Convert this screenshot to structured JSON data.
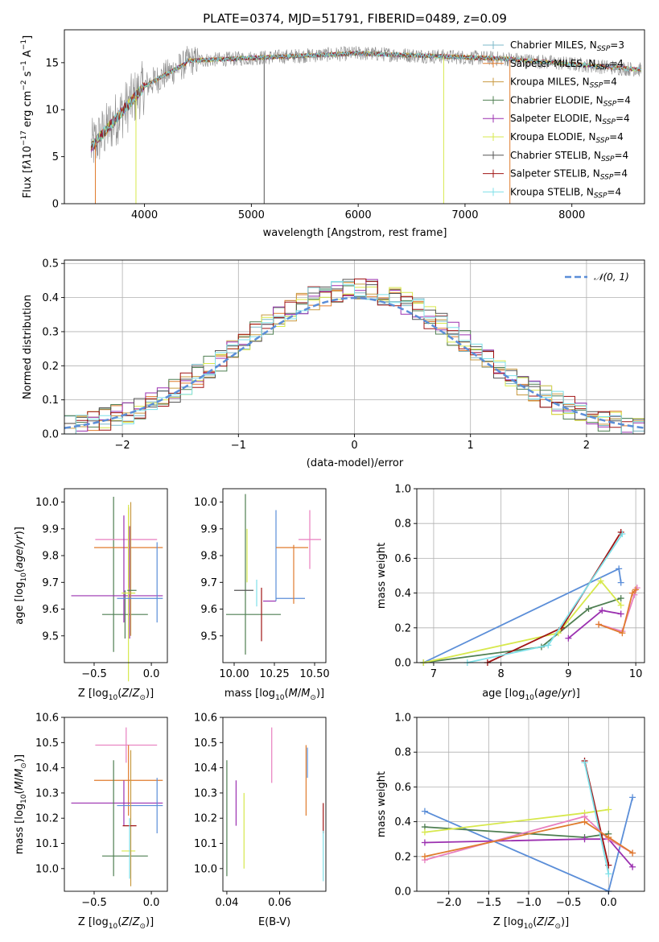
{
  "chart_data": [
    {
      "id": "spectrum",
      "type": "line",
      "title": "PLATE=0374, MJD=51791, FIBERID=0489, z=0.09",
      "xlabel": "wavelength [Angstrom, rest frame]",
      "ylabel": "Flux [f_λ 10^-17 erg cm^-2 s^-1 A^-1]",
      "xlim": [
        3250,
        8680
      ],
      "ylim": [
        0,
        18.5
      ],
      "xticks": [
        4000,
        5000,
        6000,
        7000,
        8000
      ],
      "yticks": [
        0,
        5,
        10,
        15
      ],
      "grid": false,
      "legend_position": "right",
      "series": [
        {
          "name": "Chabrier MILES, N_SSP=3",
          "color": "#7cb8c8",
          "style": "plus"
        },
        {
          "name": "Salpeter MILES, N_SSP=4",
          "color": "#e07c2e"
        },
        {
          "name": "Kroupa MILES, N_SSP=4",
          "color": "#c89a40"
        },
        {
          "name": "Chabrier ELODIE, N_SSP=4",
          "color": "#4f7f52"
        },
        {
          "name": "Salpeter ELODIE, N_SSP=4",
          "color": "#9b30b0"
        },
        {
          "name": "Kroupa ELODIE, N_SSP=4",
          "color": "#d7e84c"
        },
        {
          "name": "Chabrier STELIB, N_SSP=4",
          "color": "#555555"
        },
        {
          "name": "Salpeter STELIB, N_SSP=4",
          "color": "#a01414"
        },
        {
          "name": "Kroupa STELIB, N_SSP=4",
          "color": "#7fe0e8"
        }
      ]
    },
    {
      "id": "residuals",
      "type": "line",
      "xlabel": "(data-model)/error",
      "ylabel": "Normed distribution",
      "xlim": [
        -2.5,
        2.5
      ],
      "ylim": [
        0,
        0.51
      ],
      "xticks": [
        -2,
        -1,
        0,
        1,
        2
      ],
      "yticks": [
        0.0,
        0.1,
        0.2,
        0.3,
        0.4,
        0.5
      ],
      "grid": true,
      "legend": "𝒩(0, 1)",
      "legend_position": "top-right",
      "curve": {
        "name": "N(0,1)",
        "mean": 0,
        "sigma": 1,
        "color": "#5b8ed8",
        "style": "dashed"
      }
    },
    {
      "id": "age_vs_Z",
      "type": "scatter",
      "xlabel": "Z [log10(Z/Z☉)]",
      "ylabel": "age  [log10(age/yr)]",
      "xlim": [
        -0.76,
        0.14
      ],
      "ylim": [
        9.4,
        10.05
      ],
      "xticks": [
        -0.5,
        0.0
      ],
      "yticks": [
        9.5,
        9.6,
        9.7,
        9.8,
        9.9,
        10.0
      ],
      "points": [
        {
          "x": -0.23,
          "y": 9.58,
          "xerr": 0.2,
          "yerr": 0.09,
          "color": "#4f7f52"
        },
        {
          "x": -0.33,
          "y": 9.73,
          "xerr": 0.0,
          "yerr": 0.29,
          "color": "#4f7f52"
        },
        {
          "x": -0.22,
          "y": 9.86,
          "xerr": 0.27,
          "yerr": 0.0,
          "color": "#e87fbf"
        },
        {
          "x": -0.2,
          "y": 9.83,
          "xerr": 0.3,
          "yerr": 0.15,
          "color": "#e07c2e"
        },
        {
          "x": -0.3,
          "y": 9.65,
          "xerr": 0.4,
          "yerr": 0.0,
          "color": "#9b30b0"
        },
        {
          "x": -0.24,
          "y": 9.75,
          "xerr": 0.0,
          "yerr": 0.2,
          "color": "#9b30b0"
        },
        {
          "x": -0.19,
          "y": 9.7,
          "xerr": 0.0,
          "yerr": 0.21,
          "color": "#9b30b0"
        },
        {
          "x": -0.2,
          "y": 9.66,
          "xerr": 0.06,
          "yerr": 0.33,
          "color": "#d7e84c"
        },
        {
          "x": -0.18,
          "y": 9.75,
          "xerr": 0.0,
          "yerr": 0.25,
          "color": "#c89a40"
        },
        {
          "x": -0.1,
          "y": 9.64,
          "xerr": 0.2,
          "yerr": 0.0,
          "color": "#5b8ed8"
        },
        {
          "x": 0.05,
          "y": 9.7,
          "xerr": 0.0,
          "yerr": 0.15,
          "color": "#5b8ed8"
        },
        {
          "x": -0.17,
          "y": 9.67,
          "xerr": 0.04,
          "yerr": 0.0,
          "color": "#4f7f52"
        }
      ]
    },
    {
      "id": "age_vs_mass",
      "type": "scatter",
      "xlabel": "mass [log10(M/M☉)]",
      "ylabel": "",
      "xlim": [
        9.93,
        10.57
      ],
      "ylim": [
        9.4,
        10.05
      ],
      "xticks": [
        10.0,
        10.25,
        10.5
      ],
      "yticks": [
        9.5,
        9.6,
        9.7,
        9.8,
        9.9,
        10.0
      ],
      "points": [
        {
          "x": 10.07,
          "y": 9.73,
          "xerr": 0.0,
          "yerr": 0.3,
          "color": "#4f7f52"
        },
        {
          "x": 10.12,
          "y": 9.58,
          "xerr": 0.17,
          "yerr": 0.0,
          "color": "#4f7f52"
        },
        {
          "x": 10.06,
          "y": 9.67,
          "xerr": 0.06,
          "yerr": 0.0,
          "color": "#555555"
        },
        {
          "x": 10.08,
          "y": 9.8,
          "xerr": 0.0,
          "yerr": 0.1,
          "color": "#d7e84c"
        },
        {
          "x": 10.22,
          "y": 9.63,
          "xerr": 0.04,
          "yerr": 0.0,
          "color": "#9b30b0"
        },
        {
          "x": 10.17,
          "y": 9.58,
          "xerr": 0.0,
          "yerr": 0.1,
          "color": "#a01414"
        },
        {
          "x": 10.26,
          "y": 9.8,
          "xerr": 0.0,
          "yerr": 0.17,
          "color": "#5b8ed8"
        },
        {
          "x": 10.35,
          "y": 9.64,
          "xerr": 0.09,
          "yerr": 0.0,
          "color": "#5b8ed8"
        },
        {
          "x": 10.36,
          "y": 9.83,
          "xerr": 0.1,
          "yerr": 0.0,
          "color": "#e07c2e"
        },
        {
          "x": 10.37,
          "y": 9.73,
          "xerr": 0.0,
          "yerr": 0.11,
          "color": "#e07c2e"
        },
        {
          "x": 10.47,
          "y": 9.86,
          "xerr": 0.07,
          "yerr": 0.11,
          "color": "#e87fbf"
        },
        {
          "x": 10.14,
          "y": 9.66,
          "xerr": 0.0,
          "yerr": 0.05,
          "color": "#7fe0e8"
        }
      ]
    },
    {
      "id": "weight_vs_age",
      "type": "line",
      "xlabel": "age  [log10(age/yr)]",
      "ylabel": "mass weight",
      "xlim": [
        6.75,
        10.13
      ],
      "ylim": [
        0,
        1.0
      ],
      "xticks": [
        7,
        8,
        9,
        10
      ],
      "yticks": [
        0.0,
        0.2,
        0.4,
        0.6,
        0.8,
        1.0
      ],
      "grid": true,
      "series": [
        {
          "color": "#5b8ed8",
          "x": [
            6.85,
            9.75,
            9.78
          ],
          "y": [
            0.0,
            0.54,
            0.46
          ]
        },
        {
          "color": "#4f7f52",
          "x": [
            6.85,
            8.6,
            9.3,
            9.78
          ],
          "y": [
            0.0,
            0.09,
            0.31,
            0.37
          ]
        },
        {
          "color": "#d7e84c",
          "x": [
            6.85,
            8.85,
            9.48,
            9.78
          ],
          "y": [
            0.0,
            0.17,
            0.47,
            0.33
          ]
        },
        {
          "color": "#9b30b0",
          "x": [
            9.0,
            9.5,
            9.78
          ],
          "y": [
            0.14,
            0.3,
            0.28
          ]
        },
        {
          "color": "#a01414",
          "x": [
            7.8,
            8.9,
            9.78
          ],
          "y": [
            0.0,
            0.2,
            0.75
          ]
        },
        {
          "color": "#7fe0e8",
          "x": [
            7.5,
            8.7,
            9.8
          ],
          "y": [
            0.0,
            0.1,
            0.74
          ]
        },
        {
          "color": "#e87fbf",
          "x": [
            9.45,
            9.8,
            9.98,
            10.02
          ],
          "y": [
            0.22,
            0.18,
            0.39,
            0.43
          ]
        },
        {
          "color": "#e07c2e",
          "x": [
            9.45,
            9.8,
            9.95,
            10.0
          ],
          "y": [
            0.22,
            0.17,
            0.4,
            0.42
          ]
        }
      ]
    },
    {
      "id": "mass_vs_Z",
      "type": "scatter",
      "xlabel": "Z [log10(Z/Z☉)]",
      "ylabel": "mass [log10(M/M☉)]",
      "xlim": [
        -0.76,
        0.14
      ],
      "ylim": [
        9.91,
        10.6
      ],
      "xticks": [
        -0.5,
        0.0
      ],
      "yticks": [
        10.0,
        10.1,
        10.2,
        10.3,
        10.4,
        10.5,
        10.6
      ],
      "points": [
        {
          "x": -0.22,
          "y": 10.49,
          "xerr": 0.27,
          "yerr": 0.07,
          "color": "#e87fbf"
        },
        {
          "x": -0.2,
          "y": 10.35,
          "xerr": 0.3,
          "yerr": 0.14,
          "color": "#e07c2e"
        },
        {
          "x": -0.3,
          "y": 10.26,
          "xerr": 0.4,
          "yerr": 0.0,
          "color": "#9b30b0"
        },
        {
          "x": -0.24,
          "y": 10.26,
          "xerr": 0.0,
          "yerr": 0.09,
          "color": "#9b30b0"
        },
        {
          "x": -0.1,
          "y": 10.25,
          "xerr": 0.2,
          "yerr": 0.0,
          "color": "#5b8ed8"
        },
        {
          "x": 0.05,
          "y": 10.25,
          "xerr": 0.0,
          "yerr": 0.11,
          "color": "#5b8ed8"
        },
        {
          "x": -0.33,
          "y": 10.2,
          "xerr": 0.0,
          "yerr": 0.23,
          "color": "#4f7f52"
        },
        {
          "x": -0.23,
          "y": 10.05,
          "xerr": 0.2,
          "yerr": 0.0,
          "color": "#4f7f52"
        },
        {
          "x": -0.2,
          "y": 10.07,
          "xerr": 0.06,
          "yerr": 0.0,
          "color": "#d7e84c"
        },
        {
          "x": -0.18,
          "y": 10.2,
          "xerr": 0.0,
          "yerr": 0.27,
          "color": "#c89a40"
        },
        {
          "x": -0.19,
          "y": 10.17,
          "xerr": 0.06,
          "yerr": 0.0,
          "color": "#a01414"
        },
        {
          "x": -0.19,
          "y": 10.08,
          "xerr": 0.0,
          "yerr": 0.12,
          "color": "#7fe0e8"
        }
      ]
    },
    {
      "id": "mass_vs_EBV",
      "type": "scatter",
      "xlabel": "E(B-V)",
      "ylabel": "",
      "xlim": [
        0.0385,
        0.0775
      ],
      "ylim": [
        9.91,
        10.6
      ],
      "xticks": [
        0.04,
        0.06
      ],
      "yticks": [
        10.0,
        10.1,
        10.2,
        10.3,
        10.4,
        10.5,
        10.6
      ],
      "points": [
        {
          "x": 0.04,
          "y": 10.2,
          "xerr": 0.0,
          "yerr": 0.23,
          "color": "#4f7f52"
        },
        {
          "x": 0.0435,
          "y": 10.26,
          "xerr": 0.0,
          "yerr": 0.09,
          "color": "#9b30b0"
        },
        {
          "x": 0.0465,
          "y": 10.15,
          "xerr": 0.0,
          "yerr": 0.15,
          "color": "#d7e84c"
        },
        {
          "x": 0.057,
          "y": 10.45,
          "xerr": 0.0,
          "yerr": 0.11,
          "color": "#e87fbf"
        },
        {
          "x": 0.07,
          "y": 10.35,
          "xerr": 0.0,
          "yerr": 0.14,
          "color": "#e07c2e"
        },
        {
          "x": 0.0705,
          "y": 10.42,
          "xerr": 0.0,
          "yerr": 0.06,
          "color": "#5b8ed8"
        },
        {
          "x": 0.0765,
          "y": 10.2,
          "xerr": 0.0,
          "yerr": 0.06,
          "color": "#a01414"
        },
        {
          "x": 0.0765,
          "y": 10.05,
          "xerr": 0.0,
          "yerr": 0.1,
          "color": "#7fe0e8"
        }
      ]
    },
    {
      "id": "weight_vs_Z",
      "type": "line",
      "xlabel": "Z [log10(Z/Z☉)]",
      "ylabel": "mass weight",
      "xlim": [
        -2.4,
        0.45
      ],
      "ylim": [
        0,
        1.0
      ],
      "xticks": [
        -2.0,
        -1.5,
        -1.0,
        -0.5,
        0.0
      ],
      "yticks": [
        0.0,
        0.2,
        0.4,
        0.6,
        0.8,
        1.0
      ],
      "grid": true,
      "series": [
        {
          "color": "#5b8ed8",
          "x": [
            -2.3,
            0.0,
            0.3
          ],
          "y": [
            0.46,
            0.0,
            0.54
          ]
        },
        {
          "color": "#4f7f52",
          "x": [
            -2.3,
            -0.3,
            0.0
          ],
          "y": [
            0.37,
            0.31,
            0.33
          ]
        },
        {
          "color": "#d7e84c",
          "x": [
            -2.3,
            -0.3,
            0.0
          ],
          "y": [
            0.34,
            0.45,
            0.47
          ]
        },
        {
          "color": "#9b30b0",
          "x": [
            -2.3,
            -0.3,
            0.0,
            0.3
          ],
          "y": [
            0.28,
            0.3,
            0.3,
            0.14
          ]
        },
        {
          "color": "#a01414",
          "x": [
            -0.3,
            0.0
          ],
          "y": [
            0.75,
            0.15
          ]
        },
        {
          "color": "#7fe0e8",
          "x": [
            -0.3,
            0.0
          ],
          "y": [
            0.74,
            0.1
          ]
        },
        {
          "color": "#e87fbf",
          "x": [
            -2.3,
            -0.3,
            0.0,
            0.3
          ],
          "y": [
            0.18,
            0.43,
            0.3,
            0.22
          ]
        },
        {
          "color": "#e07c2e",
          "x": [
            -2.3,
            -0.3,
            0.0,
            0.3
          ],
          "y": [
            0.2,
            0.4,
            0.31,
            0.22
          ]
        }
      ]
    }
  ]
}
